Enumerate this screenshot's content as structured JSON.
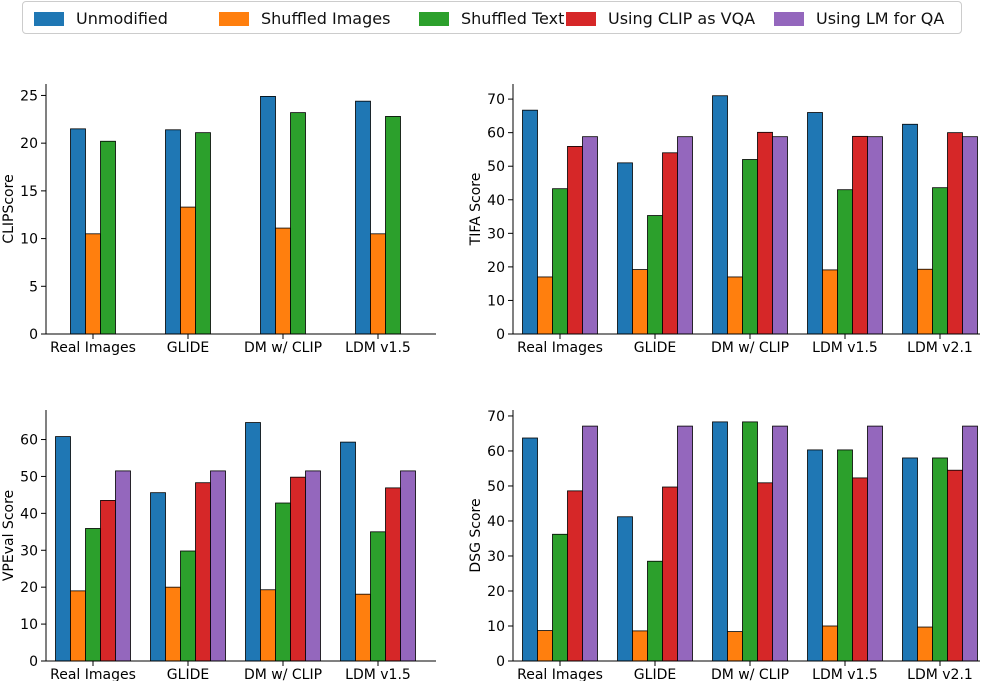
{
  "legend": {
    "items": [
      {
        "label": "Unmodified",
        "color": "#1f77b4"
      },
      {
        "label": "Shuffled Images",
        "color": "#ff7f0e"
      },
      {
        "label": "Shuffled Text",
        "color": "#2ca02c"
      },
      {
        "label": "Using CLIP as VQA",
        "color": "#d62728"
      },
      {
        "label": "Using LM for QA",
        "color": "#9467bd"
      }
    ]
  },
  "chart_data": [
    {
      "type": "bar",
      "ylabel": "CLIPScore",
      "ylim": [
        0,
        26.2
      ],
      "yticks": [
        0,
        5,
        10,
        15,
        20,
        25
      ],
      "categories": [
        "Real Images",
        "GLIDE",
        "DM w/ CLIP",
        "LDM v1.5"
      ],
      "series": [
        {
          "name": "Unmodified",
          "values": [
            21.5,
            21.4,
            24.9,
            24.4
          ]
        },
        {
          "name": "Shuffled Images",
          "values": [
            10.5,
            13.3,
            11.1,
            10.5
          ]
        },
        {
          "name": "Shuffled Text",
          "values": [
            20.2,
            21.1,
            23.2,
            22.8
          ]
        }
      ]
    },
    {
      "type": "bar",
      "ylabel": "TIFA Score",
      "ylim": [
        0,
        74.5
      ],
      "yticks": [
        0,
        10,
        20,
        30,
        40,
        50,
        60,
        70
      ],
      "categories": [
        "Real Images",
        "GLIDE",
        "DM w/ CLIP",
        "LDM v1.5",
        "LDM v2.1"
      ],
      "series": [
        {
          "name": "Unmodified",
          "values": [
            66.7,
            51.0,
            71.0,
            66.0,
            62.5
          ]
        },
        {
          "name": "Shuffled Images",
          "values": [
            17.0,
            19.2,
            17.0,
            19.1,
            19.3
          ]
        },
        {
          "name": "Shuffled Text",
          "values": [
            43.3,
            35.3,
            52.0,
            43.0,
            43.6
          ]
        },
        {
          "name": "Using CLIP as VQA",
          "values": [
            55.9,
            54.0,
            60.1,
            58.9,
            60.0
          ]
        },
        {
          "name": "Using LM for QA",
          "values": [
            58.8,
            58.8,
            58.8,
            58.8,
            58.8
          ]
        }
      ]
    },
    {
      "type": "bar",
      "ylabel": "VPEval Score",
      "ylim": [
        0,
        68
      ],
      "yticks": [
        0,
        10,
        20,
        30,
        40,
        50,
        60
      ],
      "categories": [
        "Real Images",
        "GLIDE",
        "DM w/ CLIP",
        "LDM v1.5"
      ],
      "series": [
        {
          "name": "Unmodified",
          "values": [
            60.8,
            45.6,
            64.6,
            59.3
          ]
        },
        {
          "name": "Shuffled Images",
          "values": [
            19.0,
            20.0,
            19.3,
            18.1
          ]
        },
        {
          "name": "Shuffled Text",
          "values": [
            35.9,
            29.8,
            42.8,
            35.0
          ]
        },
        {
          "name": "Using CLIP as VQA",
          "values": [
            43.5,
            48.3,
            49.8,
            46.9
          ]
        },
        {
          "name": "Using LM for QA",
          "values": [
            51.5,
            51.5,
            51.5,
            51.5
          ]
        }
      ]
    },
    {
      "type": "bar",
      "ylabel": "DSG Score",
      "ylim": [
        0,
        71.7
      ],
      "yticks": [
        0,
        10,
        20,
        30,
        40,
        50,
        60,
        70
      ],
      "categories": [
        "Real Images",
        "GLIDE",
        "DM w/ CLIP",
        "LDM v1.5",
        "LDM v2.1"
      ],
      "series": [
        {
          "name": "Unmodified",
          "values": [
            63.7,
            41.2,
            68.3,
            60.3,
            58.0
          ]
        },
        {
          "name": "Shuffled Images",
          "values": [
            8.7,
            8.6,
            8.4,
            10.0,
            9.7
          ]
        },
        {
          "name": "Shuffled Text",
          "values": [
            36.2,
            28.5,
            68.3,
            60.3,
            58.0
          ]
        },
        {
          "name": "Using CLIP as VQA",
          "values": [
            48.6,
            49.7,
            50.9,
            52.3,
            54.5
          ]
        },
        {
          "name": "Using LM for QA",
          "values": [
            67.1,
            67.1,
            67.1,
            67.1,
            67.1
          ]
        }
      ]
    }
  ]
}
